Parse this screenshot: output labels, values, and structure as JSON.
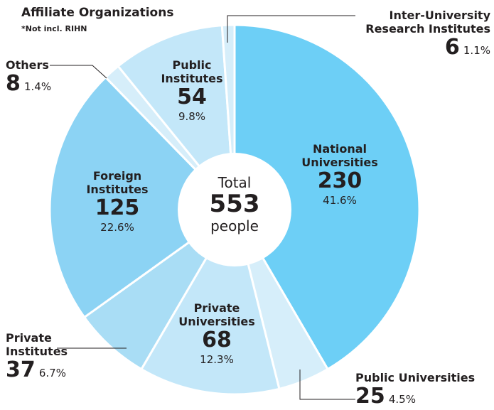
{
  "chart_data": {
    "type": "donut",
    "title": "Affiliate Organizations",
    "subtitle": "*Not incl. RIHN",
    "center_label": "Total",
    "total": 553,
    "total_unit": "people",
    "categories": [
      "National Universities",
      "Public Universities",
      "Private Universities",
      "Private Institutes",
      "Foreign Institutes",
      "Others",
      "Public Institutes",
      "Inter-University Research Institutes"
    ],
    "values": [
      230,
      25,
      68,
      37,
      125,
      8,
      54,
      6
    ],
    "percentages": [
      "41.6%",
      "4.5%",
      "12.3%",
      "6.7%",
      "22.6%",
      "1.4%",
      "9.8%",
      "1.1%"
    ],
    "colors": [
      "#6dcff6",
      "#d6eefa",
      "#c3e7f9",
      "#a9ddf5",
      "#8cd3f4",
      "#d6eefa",
      "#c3e7f9",
      "#d6eefa"
    ]
  }
}
